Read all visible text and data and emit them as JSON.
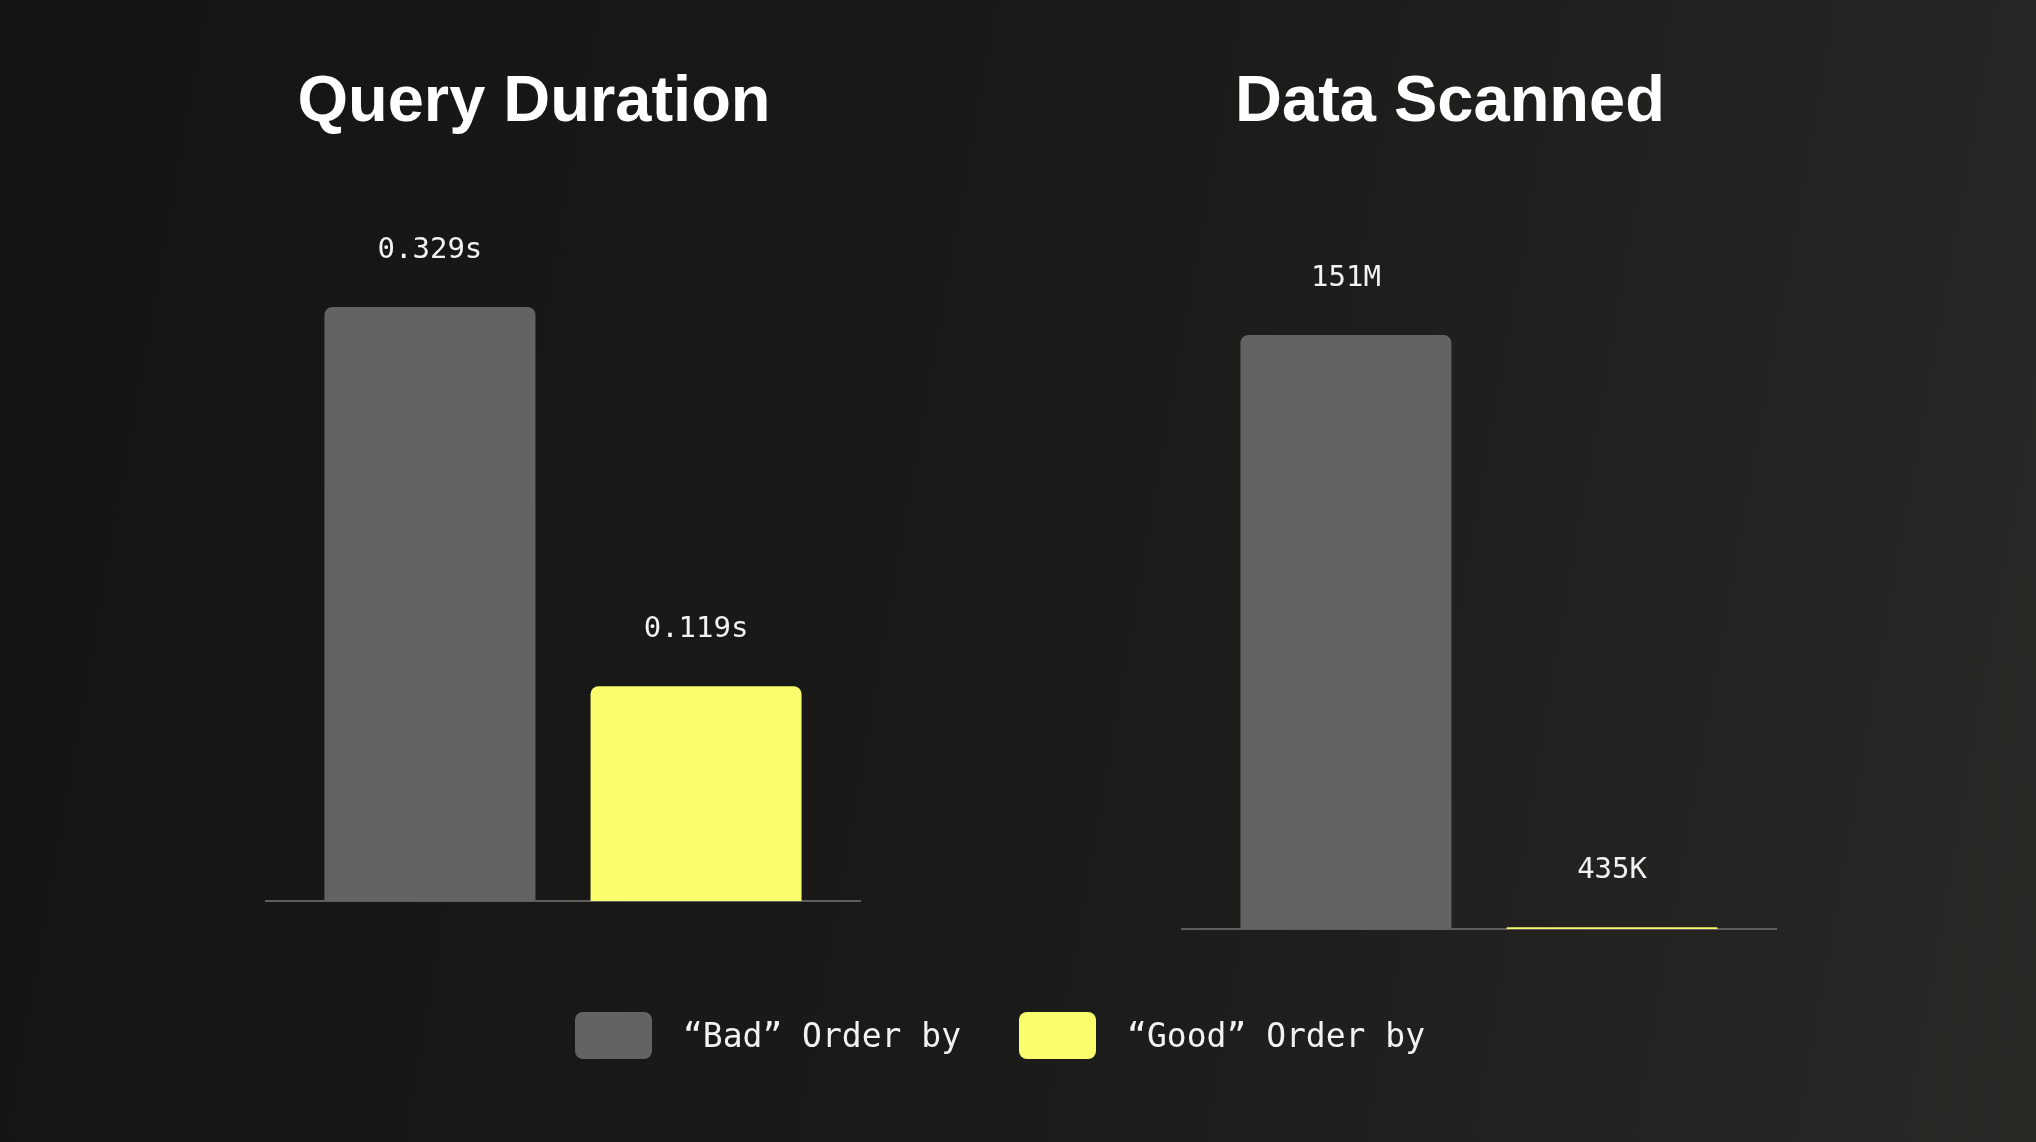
{
  "chart_data": [
    {
      "type": "bar",
      "title": "Query Duration",
      "categories": [
        null
      ],
      "series": [
        {
          "name": "“Bad” Order by",
          "color": "#636363",
          "values": [
            0.329
          ],
          "value_labels": [
            "0.329s"
          ]
        },
        {
          "name": "“Good” Order by",
          "color": "#fafd6c",
          "values": [
            0.119
          ],
          "value_labels": [
            "0.119s"
          ]
        }
      ],
      "legend": "bottom"
    },
    {
      "type": "bar",
      "title": "Data Scanned",
      "categories": [
        null
      ],
      "series": [
        {
          "color": "#636363",
          "values": [
            151000000
          ],
          "value_labels": [
            "151M"
          ]
        },
        {
          "color": "#fafd6c",
          "values": [
            435000
          ],
          "value_labels": [
            "435K"
          ]
        }
      ]
    }
  ]
}
